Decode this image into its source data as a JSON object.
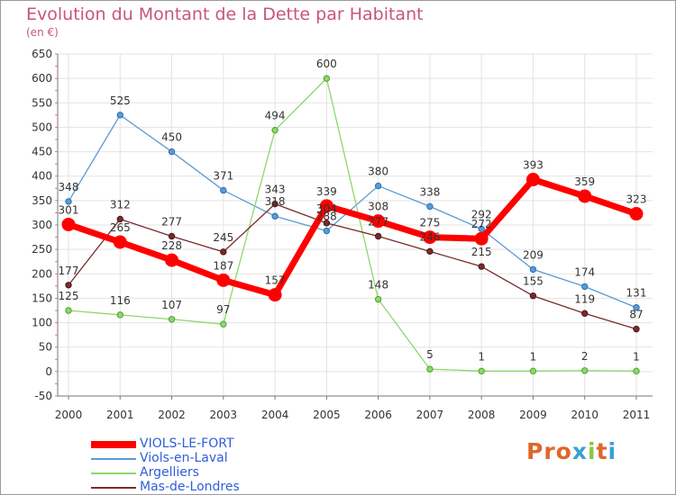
{
  "header": {
    "title": "Evolution du Montant de la Dette par Habitant",
    "subtitle": "(en €)"
  },
  "brand": {
    "text": "Proxiti",
    "colors": [
      "#e0662a",
      "#e0662a",
      "#e0662a",
      "#39a0d6",
      "#8cc63f",
      "#e0662a",
      "#39a0d6"
    ]
  },
  "chart_data": {
    "type": "line",
    "title": "Evolution du Montant de la Dette par Habitant",
    "subtitle": "(en €)",
    "x": [
      "2000",
      "2001",
      "2002",
      "2003",
      "2004",
      "2005",
      "2006",
      "2007",
      "2008",
      "2009",
      "2010",
      "2011"
    ],
    "ylim": [
      -50,
      650
    ],
    "yticks": [
      -50,
      0,
      50,
      100,
      150,
      200,
      250,
      300,
      350,
      400,
      450,
      500,
      550,
      600,
      650
    ],
    "grid": true,
    "legend_position": "bottom-left",
    "series": [
      {
        "name": "VIOLS-LE-FORT",
        "color": "#ff0000",
        "values": [
          301,
          265,
          228,
          187,
          157,
          339,
          308,
          275,
          272,
          393,
          359,
          323
        ]
      },
      {
        "name": "Viols-en-Laval",
        "color": "#5b9bd5",
        "values": [
          348,
          525,
          450,
          371,
          318,
          288,
          380,
          338,
          292,
          209,
          174,
          131
        ]
      },
      {
        "name": "Argelliers",
        "color": "#8cd86c",
        "values": [
          125,
          116,
          107,
          97,
          494,
          600,
          148,
          5,
          1,
          1,
          2,
          1
        ]
      },
      {
        "name": "Mas-de-Londres",
        "color": "#7a2a2a",
        "values": [
          177,
          312,
          277,
          245,
          343,
          304,
          277,
          246,
          215,
          155,
          119,
          87
        ]
      }
    ],
    "data_labels": {
      "VIOLS-LE-FORT": [
        "301",
        "265",
        "228",
        "187",
        "157",
        "339",
        "308",
        "275",
        "272",
        "393",
        "359",
        "323"
      ],
      "Viols-en-Laval": [
        "348",
        "525",
        "450",
        "371",
        "318",
        "288",
        "380",
        "338",
        "292",
        "209",
        "174",
        "131"
      ],
      "Argelliers": [
        "125",
        "116",
        "107",
        "97",
        "494",
        "600",
        "148",
        "5",
        "1",
        "1",
        "2",
        "1"
      ],
      "Mas-de-Londres": [
        "177",
        "312",
        "277",
        "245",
        "343",
        "304",
        "277",
        "246",
        "215",
        "155",
        "119",
        "87"
      ]
    }
  }
}
